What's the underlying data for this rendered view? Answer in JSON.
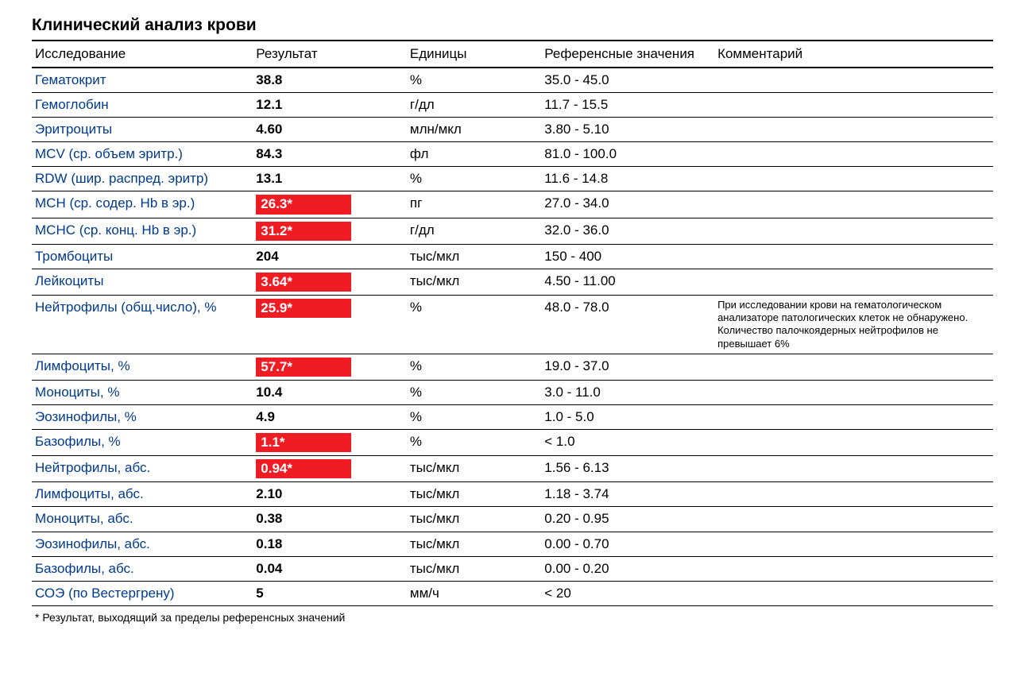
{
  "title": "Клинический анализ крови",
  "columns": {
    "name": "Исследование",
    "result": "Результат",
    "units": "Единицы",
    "ref": "Референсные значения",
    "comment": "Комментарий"
  },
  "col_widths": {
    "name": "23%",
    "result": "16%",
    "units": "14%",
    "ref": "18%",
    "comment": "29%"
  },
  "name_color": "#003a8c",
  "flag_bg": "#ef1c24",
  "flag_text_color": "#ffffff",
  "border_color": "#000000",
  "rows": [
    {
      "name": "Гематокрит",
      "result": "38.8",
      "abnormal": false,
      "units": "%",
      "ref": "35.0 - 45.0",
      "comment": ""
    },
    {
      "name": "Гемоглобин",
      "result": "12.1",
      "abnormal": false,
      "units": "г/дл",
      "ref": "11.7 - 15.5",
      "comment": ""
    },
    {
      "name": "Эритроциты",
      "result": "4.60",
      "abnormal": false,
      "units": "млн/мкл",
      "ref": "3.80 - 5.10",
      "comment": ""
    },
    {
      "name": "MCV (ср. объем эритр.)",
      "result": "84.3",
      "abnormal": false,
      "units": "фл",
      "ref": "81.0 - 100.0",
      "comment": ""
    },
    {
      "name": "RDW (шир. распред. эритр)",
      "result": "13.1",
      "abnormal": false,
      "units": "%",
      "ref": "11.6 - 14.8",
      "comment": ""
    },
    {
      "name": "MCH (ср. содер. Hb в эр.)",
      "result": "26.3*",
      "abnormal": true,
      "units": "пг",
      "ref": "27.0 - 34.0",
      "comment": ""
    },
    {
      "name": "MCHC (ср. конц. Hb в эр.)",
      "result": "31.2*",
      "abnormal": true,
      "units": "г/дл",
      "ref": "32.0 - 36.0",
      "comment": ""
    },
    {
      "name": "Тромбоциты",
      "result": "204",
      "abnormal": false,
      "units": "тыс/мкл",
      "ref": "150 - 400",
      "comment": ""
    },
    {
      "name": "Лейкоциты",
      "result": "3.64*",
      "abnormal": true,
      "units": "тыс/мкл",
      "ref": "4.50 - 11.00",
      "comment": ""
    },
    {
      "name": "Нейтрофилы (общ.число), %",
      "result": "25.9*",
      "abnormal": true,
      "units": "%",
      "ref": "48.0 - 78.0",
      "comment": "При исследовании крови на гематологическом анализаторе патологических клеток не обнаружено. Количество палочкоядерных нейтрофилов не превышает 6%"
    },
    {
      "name": "Лимфоциты, %",
      "result": "57.7*",
      "abnormal": true,
      "units": "%",
      "ref": "19.0 - 37.0",
      "comment": ""
    },
    {
      "name": "Моноциты, %",
      "result": "10.4",
      "abnormal": false,
      "units": "%",
      "ref": "3.0 - 11.0",
      "comment": ""
    },
    {
      "name": "Эозинофилы, %",
      "result": "4.9",
      "abnormal": false,
      "units": "%",
      "ref": "1.0 - 5.0",
      "comment": ""
    },
    {
      "name": "Базофилы, %",
      "result": "1.1*",
      "abnormal": true,
      "units": "%",
      "ref": "< 1.0",
      "comment": ""
    },
    {
      "name": "Нейтрофилы, абс.",
      "result": "0.94*",
      "abnormal": true,
      "units": "тыс/мкл",
      "ref": "1.56 - 6.13",
      "comment": ""
    },
    {
      "name": "Лимфоциты, абс.",
      "result": "2.10",
      "abnormal": false,
      "units": "тыс/мкл",
      "ref": "1.18 - 3.74",
      "comment": ""
    },
    {
      "name": "Моноциты, абс.",
      "result": "0.38",
      "abnormal": false,
      "units": "тыс/мкл",
      "ref": "0.20 - 0.95",
      "comment": ""
    },
    {
      "name": "Эозинофилы, абс.",
      "result": "0.18",
      "abnormal": false,
      "units": "тыс/мкл",
      "ref": "0.00 - 0.70",
      "comment": ""
    },
    {
      "name": "Базофилы, абс.",
      "result": "0.04",
      "abnormal": false,
      "units": "тыс/мкл",
      "ref": "0.00 - 0.20",
      "comment": ""
    },
    {
      "name": "СОЭ (по Вестергрену)",
      "result": "5",
      "abnormal": false,
      "units": "мм/ч",
      "ref": "< 20",
      "comment": ""
    }
  ],
  "footnote": "* Результат, выходящий за пределы референсных значений"
}
